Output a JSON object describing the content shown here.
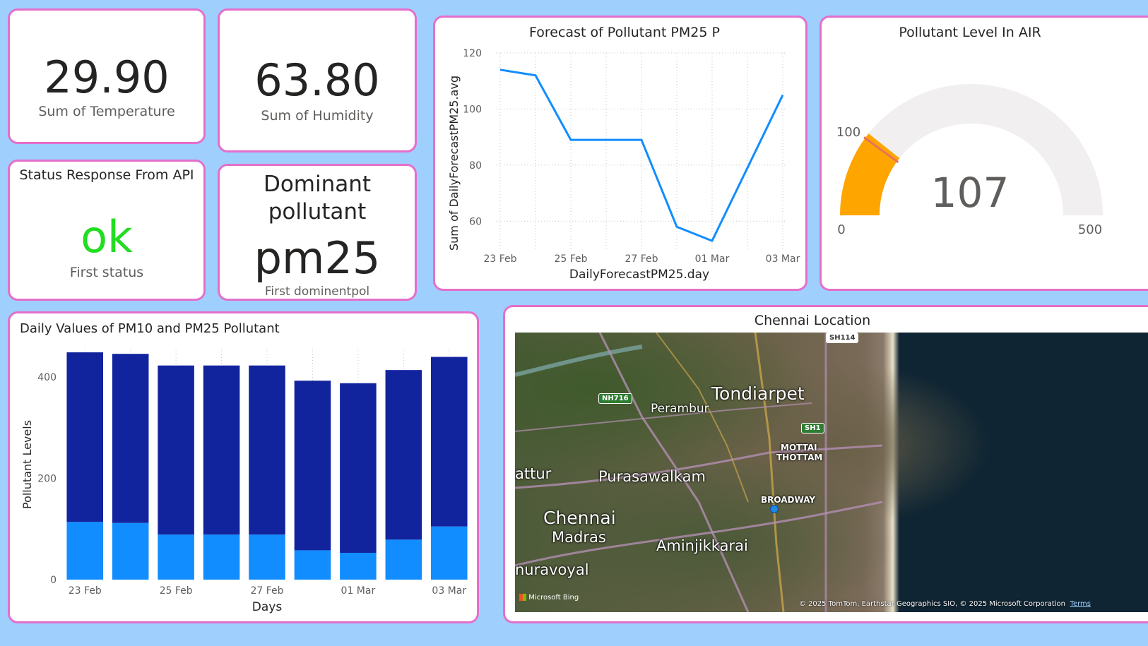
{
  "kpi_temperature": {
    "value": "29.90",
    "label": "Sum of Temperature"
  },
  "kpi_humidity": {
    "value": "63.80",
    "label": "Sum of Humidity"
  },
  "status_card": {
    "title": "Status Response From API",
    "value": "ok",
    "label": "First status",
    "value_color": "#22dd22"
  },
  "pollutant_card": {
    "title_line1": "Dominant",
    "title_line2": "pollutant",
    "value": "pm25",
    "label": "First dominentpol"
  },
  "forecast_chart": {
    "chart_data": {
      "type": "line",
      "title": "Forecast of Pollutant PM25 P",
      "xlabel": "DailyForecastPM25.day",
      "ylabel": "Sum of DailyForecastPM25.avg",
      "x": [
        "23 Feb",
        "24 Feb",
        "25 Feb",
        "26 Feb",
        "27 Feb",
        "28 Feb",
        "01 Mar",
        "02 Mar",
        "03 Mar"
      ],
      "x_tick_labels": [
        "23 Feb",
        "25 Feb",
        "27 Feb",
        "01 Mar",
        "03 Mar"
      ],
      "series": [
        {
          "values": [
            114,
            112,
            89,
            89,
            89,
            58,
            53,
            79,
            105
          ],
          "color": "#118dff"
        }
      ],
      "ylim": [
        50,
        120
      ],
      "y_ticks": [
        60,
        80,
        100,
        120
      ],
      "grid": true
    }
  },
  "gauge": {
    "title": "Pollutant Level In AIR",
    "value": "107",
    "min": "0",
    "max": "500",
    "target": "100",
    "value_num": 107,
    "min_num": 0,
    "max_num": 500,
    "target_num": 100,
    "fill_color": "#ffa500",
    "track_color": "#f1efef"
  },
  "bar_chart": {
    "chart_data": {
      "type": "bar",
      "stacked": true,
      "title": "Daily Values of PM10 and PM25 Pollutant",
      "xlabel": "Days",
      "ylabel": "Pollutant Levels",
      "categories": [
        "23 Feb",
        "24 Feb",
        "25 Feb",
        "26 Feb",
        "27 Feb",
        "28 Feb",
        "01 Mar",
        "02 Mar",
        "03 Mar"
      ],
      "x_tick_labels": [
        "23 Feb",
        "25 Feb",
        "27 Feb",
        "01 Mar",
        "03 Mar"
      ],
      "series": [
        {
          "values": [
            114,
            112,
            89,
            89,
            89,
            58,
            53,
            79,
            105
          ],
          "color": "#118dff"
        },
        {
          "values": [
            335,
            334,
            334,
            334,
            334,
            335,
            335,
            335,
            335
          ],
          "color": "#12239e"
        }
      ],
      "ylim": [
        0,
        470
      ],
      "y_ticks": [
        0,
        200,
        400
      ],
      "grid": true
    }
  },
  "map": {
    "title": "Chennai Location",
    "labels": [
      "Tondiarpet",
      "Perambur",
      "Purasawalkam",
      "Chennai",
      "Madras",
      "Aminjikkarai",
      "attur",
      "nuravoyal",
      "MOTTAI",
      "THOTTAM",
      "BROADWAY"
    ],
    "shields": [
      "NH716",
      "SH1",
      "SH114"
    ],
    "attribution": "© 2025 TomTom, Earthstar Geographics SIO, © 2025 Microsoft Corporation",
    "terms": "Terms",
    "logo": "Microsoft Bing"
  }
}
